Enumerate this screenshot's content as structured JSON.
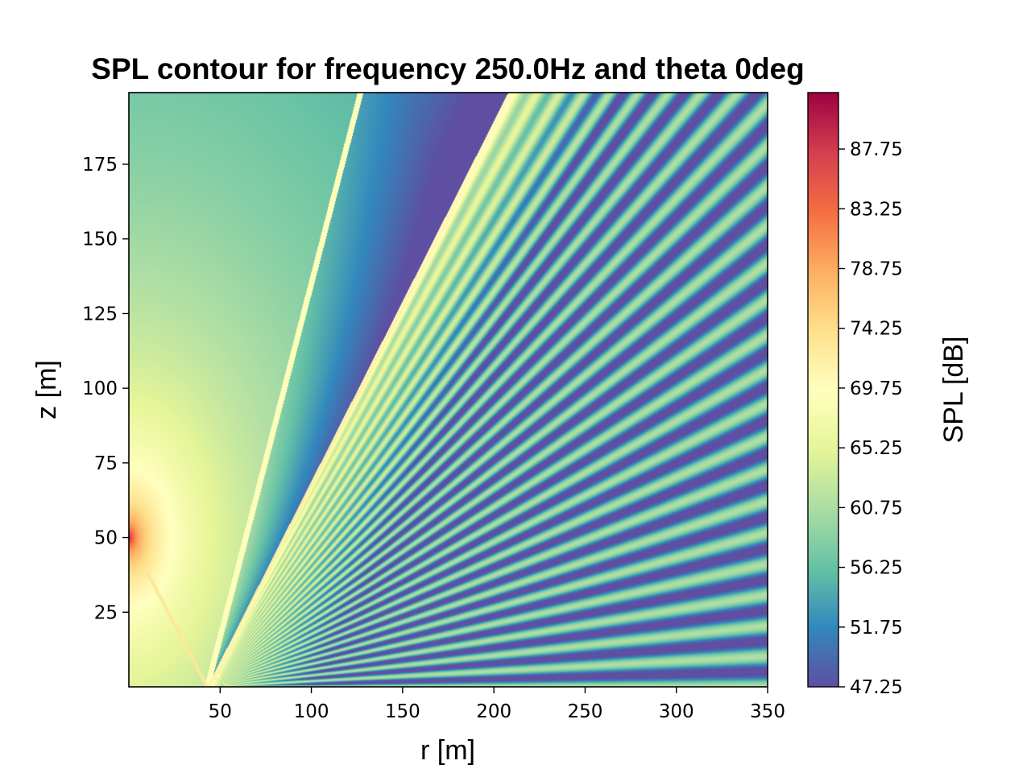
{
  "chart_data": {
    "type": "heatmap",
    "title": "SPL contour for frequency 250.0Hz and theta 0deg",
    "xlabel": "r [m]",
    "ylabel": "z [m]",
    "xlim": [
      0,
      350
    ],
    "ylim": [
      0,
      199
    ],
    "x_ticks": [
      "50",
      "100",
      "150",
      "200",
      "250",
      "300",
      "350"
    ],
    "x_tick_values": [
      50,
      100,
      150,
      200,
      250,
      300,
      350
    ],
    "y_ticks": [
      "25",
      "50",
      "75",
      "100",
      "125",
      "150",
      "175"
    ],
    "y_tick_values": [
      25,
      50,
      75,
      100,
      125,
      150,
      175
    ],
    "colorbar": {
      "label": "SPL [dB]",
      "colormap": "Spectral_r",
      "range": [
        47.25,
        92.0
      ],
      "ticks": [
        "47.25",
        "51.75",
        "56.25",
        "60.75",
        "65.25",
        "69.75",
        "74.25",
        "78.75",
        "83.25",
        "87.75"
      ],
      "tick_values": [
        47.25,
        51.75,
        56.25,
        60.75,
        65.25,
        69.75,
        74.25,
        78.75,
        83.25,
        87.75
      ],
      "colors": [
        "#5e4fa2",
        "#3288bd",
        "#66c2a5",
        "#abdda4",
        "#e6f598",
        "#ffffbf",
        "#fee08b",
        "#fdae61",
        "#f46d43",
        "#d53e4f",
        "#9e0142"
      ]
    },
    "field": {
      "source_r": 0,
      "source_z": 50,
      "frequency_hz": 250.0,
      "theta_deg": 0,
      "max_spl": 92.0,
      "direct_edge_x_at_bottom": 43,
      "direct_edge_x_at_top": 127,
      "shadow_edge_x_at_bottom": 43,
      "shadow_edge_x_at_top": 208,
      "background_min_spl": 47.25
    }
  }
}
